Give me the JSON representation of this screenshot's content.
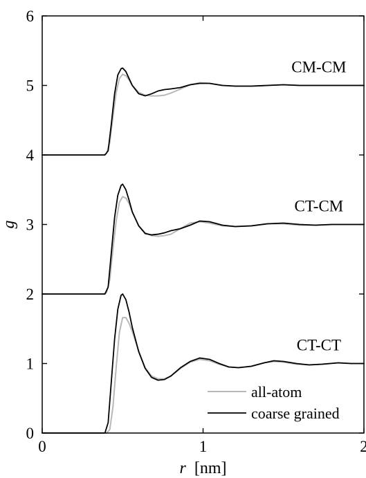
{
  "chart_data": {
    "type": "line",
    "title": "",
    "xlabel": "r",
    "xlabel_unit": "[nm]",
    "ylabel": "g",
    "xlim": [
      0,
      2
    ],
    "ylim": [
      0,
      6
    ],
    "xticks": [
      0,
      1,
      2
    ],
    "yticks": [
      0,
      1,
      2,
      3,
      4,
      5,
      6
    ],
    "xtick_labels": [
      "0",
      "1",
      "2"
    ],
    "ytick_labels": [
      "0",
      "1",
      "2",
      "3",
      "4",
      "5",
      "6"
    ],
    "grid": false,
    "legend_position": "bottom-right",
    "colors": {
      "all_atom": "#b8b8b8",
      "coarse_grained": "#000000",
      "axes": "#000000"
    },
    "legend": [
      {
        "name": "all-atom",
        "series": "all-atom"
      },
      {
        "name": "coarse grained",
        "series": "coarse grained"
      }
    ],
    "curve_labels": [
      {
        "text": "CM-CM",
        "x": 1.72,
        "y": 5.27
      },
      {
        "text": "CT-CM",
        "x": 1.72,
        "y": 3.27
      },
      {
        "text": "CT-CT",
        "x": 1.72,
        "y": 1.27
      }
    ],
    "series": [
      {
        "name": "all-atom",
        "group": "CT-CT",
        "offset": 0,
        "x": [
          0.0,
          0.38,
          0.4,
          0.42,
          0.44,
          0.46,
          0.48,
          0.5,
          0.52,
          0.54,
          0.56,
          0.6,
          0.64,
          0.68,
          0.72,
          0.76,
          0.8,
          0.86,
          0.92,
          0.98,
          1.04,
          1.1,
          1.16,
          1.22,
          1.3,
          1.38,
          1.44,
          1.5,
          1.58,
          1.66,
          1.74,
          1.84,
          1.92,
          2.0
        ],
        "y": [
          0.0,
          0.0,
          0.0,
          0.05,
          0.38,
          0.95,
          1.45,
          1.66,
          1.66,
          1.58,
          1.46,
          1.18,
          0.94,
          0.82,
          0.78,
          0.78,
          0.82,
          0.93,
          1.02,
          1.06,
          1.04,
          0.99,
          0.95,
          0.94,
          0.96,
          1.01,
          1.03,
          1.02,
          0.99,
          0.98,
          0.99,
          1.01,
          1.0,
          1.0
        ]
      },
      {
        "name": "coarse grained",
        "group": "CT-CT",
        "offset": 0,
        "x": [
          0.0,
          0.39,
          0.41,
          0.43,
          0.45,
          0.47,
          0.49,
          0.5,
          0.52,
          0.54,
          0.56,
          0.6,
          0.64,
          0.68,
          0.72,
          0.76,
          0.8,
          0.86,
          0.92,
          0.98,
          1.04,
          1.1,
          1.16,
          1.22,
          1.3,
          1.38,
          1.44,
          1.5,
          1.58,
          1.66,
          1.74,
          1.84,
          1.92,
          2.0
        ],
        "y": [
          0.0,
          0.0,
          0.15,
          0.75,
          1.35,
          1.78,
          1.98,
          2.0,
          1.92,
          1.74,
          1.52,
          1.17,
          0.93,
          0.8,
          0.76,
          0.77,
          0.82,
          0.94,
          1.03,
          1.08,
          1.06,
          1.0,
          0.95,
          0.94,
          0.96,
          1.01,
          1.04,
          1.03,
          1.0,
          0.98,
          0.99,
          1.01,
          1.0,
          1.0
        ]
      },
      {
        "name": "all-atom",
        "group": "CT-CM",
        "offset": 2,
        "x": [
          0.0,
          0.38,
          0.4,
          0.42,
          0.44,
          0.46,
          0.48,
          0.5,
          0.52,
          0.54,
          0.56,
          0.6,
          0.64,
          0.68,
          0.72,
          0.76,
          0.8,
          0.86,
          0.92,
          0.98,
          1.04,
          1.12,
          1.2,
          1.3,
          1.4,
          1.5,
          1.6,
          1.7,
          1.8,
          1.9,
          2.0
        ],
        "y": [
          2.0,
          2.0,
          2.02,
          2.2,
          2.65,
          3.05,
          3.32,
          3.4,
          3.38,
          3.3,
          3.18,
          2.98,
          2.88,
          2.84,
          2.83,
          2.84,
          2.86,
          2.94,
          3.02,
          3.04,
          3.02,
          2.98,
          2.97,
          2.98,
          3.01,
          3.01,
          2.99,
          2.99,
          3.0,
          3.0,
          3.0
        ]
      },
      {
        "name": "coarse grained",
        "group": "CT-CM",
        "offset": 2,
        "x": [
          0.0,
          0.39,
          0.41,
          0.43,
          0.45,
          0.47,
          0.49,
          0.5,
          0.52,
          0.54,
          0.56,
          0.6,
          0.64,
          0.68,
          0.72,
          0.76,
          0.8,
          0.86,
          0.92,
          0.98,
          1.04,
          1.12,
          1.2,
          1.3,
          1.4,
          1.5,
          1.6,
          1.7,
          1.8,
          1.9,
          2.0
        ],
        "y": [
          2.0,
          2.0,
          2.1,
          2.6,
          3.1,
          3.42,
          3.56,
          3.58,
          3.5,
          3.35,
          3.18,
          2.98,
          2.87,
          2.85,
          2.86,
          2.88,
          2.91,
          2.94,
          2.99,
          3.05,
          3.04,
          2.99,
          2.97,
          2.98,
          3.01,
          3.02,
          3.0,
          2.99,
          3.0,
          3.0,
          3.0
        ]
      },
      {
        "name": "all-atom",
        "group": "CM-CM",
        "offset": 4,
        "x": [
          0.0,
          0.38,
          0.4,
          0.42,
          0.44,
          0.46,
          0.48,
          0.5,
          0.52,
          0.54,
          0.56,
          0.6,
          0.64,
          0.68,
          0.72,
          0.76,
          0.8,
          0.86,
          0.92,
          0.98,
          1.04,
          1.12,
          1.2,
          1.3,
          1.4,
          1.5,
          1.6,
          1.7,
          1.8,
          1.9,
          2.0
        ],
        "y": [
          4.0,
          4.0,
          4.02,
          4.18,
          4.55,
          4.9,
          5.1,
          5.16,
          5.14,
          5.08,
          5.0,
          4.9,
          4.86,
          4.85,
          4.85,
          4.86,
          4.89,
          4.95,
          5.01,
          5.04,
          5.03,
          5.0,
          4.99,
          4.99,
          5.0,
          5.01,
          5.0,
          5.0,
          5.0,
          5.0,
          5.0
        ]
      },
      {
        "name": "coarse grained",
        "group": "CM-CM",
        "offset": 4,
        "x": [
          0.0,
          0.39,
          0.41,
          0.43,
          0.45,
          0.47,
          0.49,
          0.5,
          0.52,
          0.54,
          0.56,
          0.6,
          0.64,
          0.68,
          0.72,
          0.76,
          0.8,
          0.86,
          0.92,
          0.98,
          1.04,
          1.12,
          1.2,
          1.3,
          1.4,
          1.5,
          1.6,
          1.7,
          1.8,
          1.9,
          2.0
        ],
        "y": [
          4.0,
          4.0,
          4.06,
          4.45,
          4.88,
          5.15,
          5.24,
          5.25,
          5.2,
          5.1,
          5.0,
          4.88,
          4.85,
          4.88,
          4.92,
          4.94,
          4.95,
          4.97,
          5.01,
          5.03,
          5.03,
          5.0,
          4.99,
          4.99,
          5.0,
          5.01,
          5.0,
          5.0,
          5.0,
          5.0,
          5.0
        ]
      }
    ]
  }
}
